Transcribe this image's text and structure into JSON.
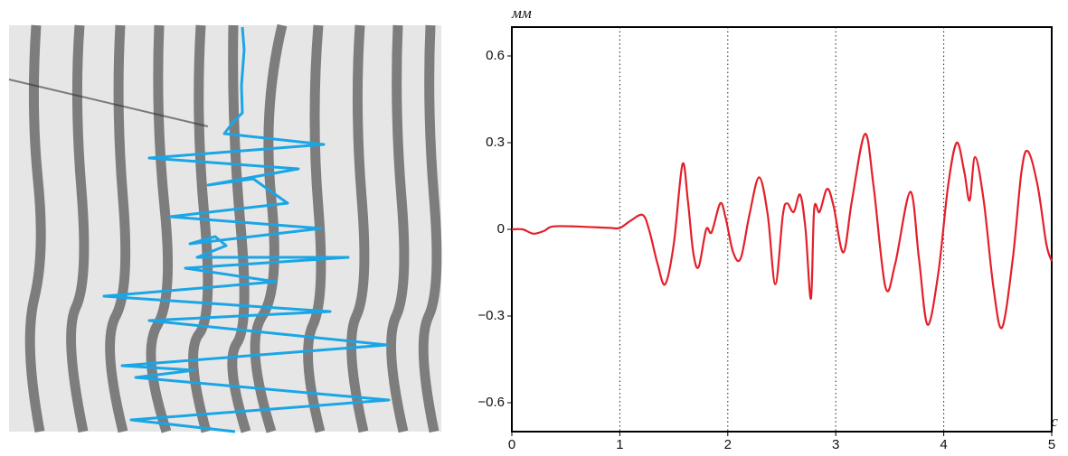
{
  "chart_data": {
    "type": "line",
    "y_label": "мм",
    "x_label": "c",
    "xlim": [
      0,
      5
    ],
    "xticks": [
      0,
      1,
      2,
      3,
      4,
      5
    ],
    "ylim": [
      -0.7,
      0.7
    ],
    "yticks": [
      {
        "value": -0.6,
        "label": "−0.6"
      },
      {
        "value": -0.3,
        "label": "−0.3"
      },
      0,
      0.3,
      0.6
    ],
    "grid": true,
    "grid_axis": "x",
    "series": [
      {
        "color": "#e3202a",
        "x": [
          0,
          0.1,
          0.2,
          0.3,
          0.38,
          0.6,
          0.9,
          1.0,
          1.1,
          1.21,
          1.27,
          1.35,
          1.42,
          1.5,
          1.58,
          1.63,
          1.68,
          1.73,
          1.8,
          1.85,
          1.93,
          1.98,
          2.05,
          2.12,
          2.2,
          2.29,
          2.37,
          2.44,
          2.51,
          2.55,
          2.61,
          2.67,
          2.72,
          2.77,
          2.8,
          2.85,
          2.92,
          2.98,
          3.07,
          3.15,
          3.27,
          3.35,
          3.46,
          3.55,
          3.69,
          3.77,
          3.85,
          3.95,
          4.04,
          4.12,
          4.19,
          4.24,
          4.29,
          4.37,
          4.46,
          4.54,
          4.64,
          4.72,
          4.78,
          4.87,
          4.95,
          5.0
        ],
        "values": [
          0,
          0,
          -0.015,
          -0.005,
          0.01,
          0.01,
          0.005,
          0.005,
          0.03,
          0.05,
          0.0,
          -0.12,
          -0.19,
          -0.05,
          0.225,
          0.1,
          -0.08,
          -0.13,
          0,
          -0.01,
          0.09,
          0.04,
          -0.08,
          -0.1,
          0.05,
          0.18,
          0.05,
          -0.19,
          0.05,
          0.09,
          0.06,
          0.12,
          0,
          -0.24,
          0.07,
          0.06,
          0.14,
          0.08,
          -0.08,
          0.1,
          0.33,
          0.15,
          -0.2,
          -0.12,
          0.13,
          -0.1,
          -0.33,
          -0.15,
          0.15,
          0.3,
          0.2,
          0.1,
          0.25,
          0.1,
          -0.2,
          -0.34,
          -0.1,
          0.2,
          0.27,
          0.15,
          -0.05,
          -0.11
        ]
      }
    ]
  }
}
